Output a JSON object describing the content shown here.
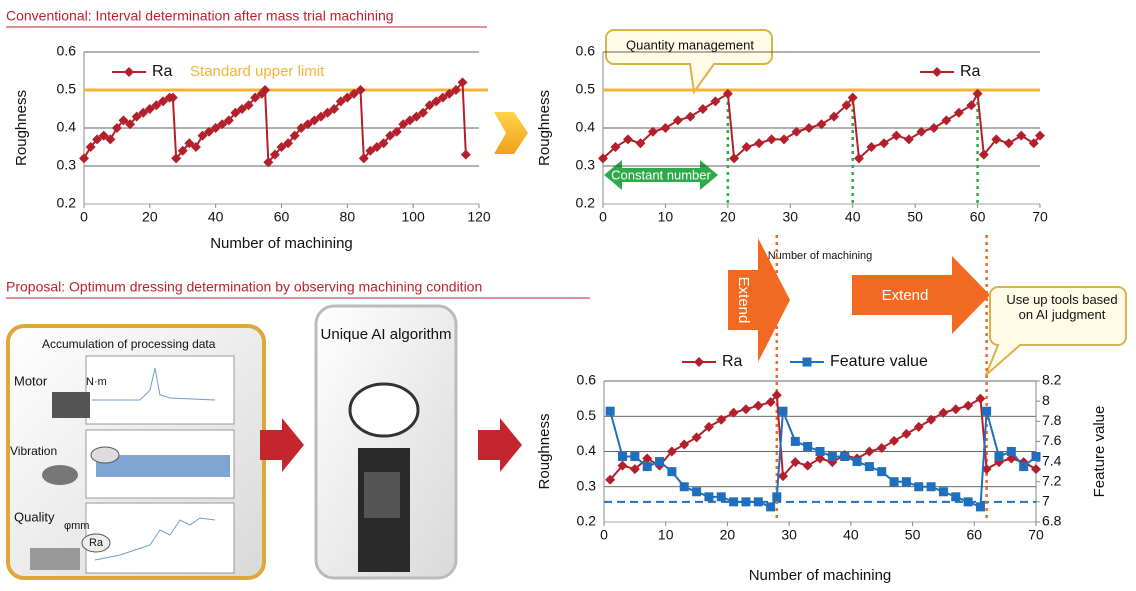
{
  "headings": {
    "conventional": "Conventional: Interval determination after mass trial machining",
    "proposal": "Proposal: Optimum dressing determination by observing machining condition"
  },
  "diagram": {
    "accumulation": "Accumulation of processing data",
    "motor": "Motor",
    "motor_unit": "N·m",
    "vibration": "Vibration",
    "quality": "Quality",
    "quality_unit": "φmm",
    "quality_ra": "Ra",
    "algorithm": "Unique AI algorithm",
    "extend_1": "Extend",
    "extend_2": "Extend"
  },
  "chart_data": [
    {
      "type": "line",
      "xlabel": "Number of machining",
      "ylabel": "Roughness",
      "xlim": [
        0,
        120
      ],
      "xticks": [
        0,
        20,
        40,
        60,
        80,
        100,
        120
      ],
      "ylim": [
        0.2,
        0.6
      ],
      "yticks": [
        0.2,
        0.3,
        0.4,
        0.5,
        0.6
      ],
      "grid": true,
      "x": [
        0,
        2,
        4,
        6,
        8,
        10,
        12,
        14,
        16,
        18,
        20,
        22,
        24,
        26,
        27,
        28,
        30,
        32,
        34,
        36,
        38,
        40,
        42,
        44,
        46,
        48,
        50,
        52,
        54,
        55,
        56,
        58,
        60,
        62,
        64,
        66,
        68,
        70,
        72,
        74,
        76,
        78,
        80,
        82,
        84,
        85,
        87,
        89,
        91,
        93,
        95,
        97,
        99,
        101,
        103,
        105,
        107,
        109,
        111,
        113,
        115,
        116
      ],
      "series": [
        {
          "name": "Ra",
          "color": "#b3202c",
          "marker": "diamond",
          "values": [
            0.32,
            0.35,
            0.37,
            0.38,
            0.37,
            0.4,
            0.42,
            0.41,
            0.43,
            0.44,
            0.45,
            0.46,
            0.47,
            0.48,
            0.48,
            0.32,
            0.34,
            0.36,
            0.35,
            0.38,
            0.39,
            0.4,
            0.41,
            0.42,
            0.44,
            0.45,
            0.46,
            0.48,
            0.49,
            0.5,
            0.31,
            0.33,
            0.35,
            0.36,
            0.38,
            0.4,
            0.41,
            0.42,
            0.43,
            0.44,
            0.45,
            0.47,
            0.48,
            0.49,
            0.5,
            0.32,
            0.34,
            0.35,
            0.36,
            0.38,
            0.39,
            0.41,
            0.42,
            0.43,
            0.44,
            0.46,
            0.47,
            0.48,
            0.49,
            0.5,
            0.52,
            0.33
          ]
        }
      ],
      "hlines": [
        {
          "value": 0.5,
          "color": "#f5b335",
          "label": "Standard upper limit"
        }
      ]
    },
    {
      "type": "line",
      "xlabel": "Number of machining",
      "ylabel": "Roughness",
      "xlim": [
        0,
        70
      ],
      "xticks": [
        0,
        10,
        20,
        30,
        40,
        50,
        60,
        70
      ],
      "ylim": [
        0.2,
        0.6
      ],
      "yticks": [
        0.2,
        0.3,
        0.4,
        0.5,
        0.6
      ],
      "grid": true,
      "x": [
        0,
        2,
        4,
        6,
        8,
        10,
        12,
        14,
        16,
        18,
        20,
        21,
        23,
        25,
        27,
        29,
        31,
        33,
        35,
        37,
        39,
        40,
        41,
        43,
        45,
        47,
        49,
        51,
        53,
        55,
        57,
        59,
        60,
        61,
        63,
        65,
        67,
        69,
        70
      ],
      "series": [
        {
          "name": "Ra",
          "color": "#b3202c",
          "marker": "diamond",
          "values": [
            0.32,
            0.35,
            0.37,
            0.36,
            0.39,
            0.4,
            0.42,
            0.43,
            0.45,
            0.47,
            0.49,
            0.32,
            0.35,
            0.36,
            0.37,
            0.37,
            0.39,
            0.4,
            0.41,
            0.43,
            0.46,
            0.48,
            0.32,
            0.35,
            0.36,
            0.38,
            0.37,
            0.39,
            0.4,
            0.42,
            0.44,
            0.46,
            0.49,
            0.33,
            0.37,
            0.36,
            0.38,
            0.36,
            0.38
          ]
        }
      ],
      "hlines": [
        {
          "value": 0.5,
          "color": "#f5b335"
        }
      ],
      "vlines": [
        20,
        40,
        60
      ],
      "vline_color": "#2eaa4a",
      "annotations": [
        "Quantity management",
        "Constant number"
      ]
    },
    {
      "type": "line",
      "xlabel": "Number of machining",
      "ylabel": "Roughness",
      "y2label": "Feature value",
      "xlim": [
        0,
        70
      ],
      "xticks": [
        0,
        10,
        20,
        30,
        40,
        50,
        60,
        70
      ],
      "ylim": [
        0.2,
        0.6
      ],
      "yticks": [
        0.2,
        0.3,
        0.4,
        0.5,
        0.6
      ],
      "y2lim": [
        6.8,
        8.2
      ],
      "y2ticks": [
        6.8,
        7,
        7.2,
        7.4,
        7.6,
        7.8,
        8,
        8.2
      ],
      "grid": true,
      "x": [
        1,
        3,
        5,
        7,
        9,
        11,
        13,
        15,
        17,
        19,
        21,
        23,
        25,
        27,
        28,
        29,
        31,
        33,
        35,
        37,
        39,
        41,
        43,
        45,
        47,
        49,
        51,
        53,
        55,
        57,
        59,
        61,
        62,
        64,
        66,
        68,
        70
      ],
      "series": [
        {
          "name": "Ra",
          "color": "#b3202c",
          "marker": "diamond",
          "values": [
            0.32,
            0.36,
            0.35,
            0.38,
            0.36,
            0.4,
            0.42,
            0.44,
            0.47,
            0.49,
            0.51,
            0.52,
            0.53,
            0.54,
            0.56,
            0.33,
            0.37,
            0.36,
            0.38,
            0.37,
            0.39,
            0.38,
            0.4,
            0.41,
            0.43,
            0.45,
            0.47,
            0.49,
            0.51,
            0.52,
            0.53,
            0.55,
            0.35,
            0.37,
            0.38,
            0.37,
            0.35
          ]
        },
        {
          "name": "Feature value",
          "color": "#1f6fbd",
          "marker": "square",
          "axis": "y2",
          "values": [
            7.9,
            7.45,
            7.45,
            7.35,
            7.4,
            7.3,
            7.15,
            7.1,
            7.05,
            7.05,
            7.0,
            7.0,
            7.0,
            6.95,
            7.05,
            7.9,
            7.6,
            7.55,
            7.5,
            7.45,
            7.45,
            7.4,
            7.35,
            7.3,
            7.2,
            7.2,
            7.15,
            7.15,
            7.1,
            7.05,
            7.0,
            6.95,
            7.9,
            7.45,
            7.5,
            7.35,
            7.45
          ]
        }
      ],
      "hlines": [
        {
          "value": 7,
          "color": "#1f6fbd",
          "axis": "y2",
          "dashed": true
        }
      ],
      "vlines": [
        28,
        62
      ],
      "vline_color": "#f26a21",
      "annotations": [
        "Use up tools based on AI judgment"
      ]
    }
  ]
}
